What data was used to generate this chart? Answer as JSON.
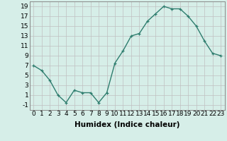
{
  "x": [
    0,
    1,
    2,
    3,
    4,
    5,
    6,
    7,
    8,
    9,
    10,
    11,
    12,
    13,
    14,
    15,
    16,
    17,
    18,
    19,
    20,
    21,
    22,
    23
  ],
  "y": [
    7,
    6,
    4,
    1,
    -0.5,
    2,
    1.5,
    1.5,
    -0.5,
    1.5,
    7.5,
    10,
    13,
    13.5,
    16,
    17.5,
    19,
    18.5,
    18.5,
    17,
    15,
    12,
    9.5,
    9
  ],
  "line_color": "#2e7d6e",
  "marker": "+",
  "bg_color": "#d6eee8",
  "grid_color": "#c0c0c0",
  "xlim": [
    -0.5,
    23.5
  ],
  "ylim": [
    -2,
    20
  ],
  "yticks": [
    -1,
    1,
    3,
    5,
    7,
    9,
    11,
    13,
    15,
    17,
    19
  ],
  "xticks": [
    0,
    1,
    2,
    3,
    4,
    5,
    6,
    7,
    8,
    9,
    10,
    11,
    12,
    13,
    14,
    15,
    16,
    17,
    18,
    19,
    20,
    21,
    22,
    23
  ],
  "xtick_labels": [
    "0",
    "1",
    "2",
    "3",
    "4",
    "5",
    "6",
    "7",
    "8",
    "9",
    "10",
    "11",
    "12",
    "13",
    "14",
    "15",
    "16",
    "17",
    "18",
    "19",
    "20",
    "21",
    "22",
    "23"
  ],
  "xlabel": "Humidex (Indice chaleur)",
  "tick_fontsize": 6.5,
  "xlabel_fontsize": 7.5,
  "linewidth": 1.0,
  "markersize": 3.5,
  "markeredgewidth": 0.9
}
